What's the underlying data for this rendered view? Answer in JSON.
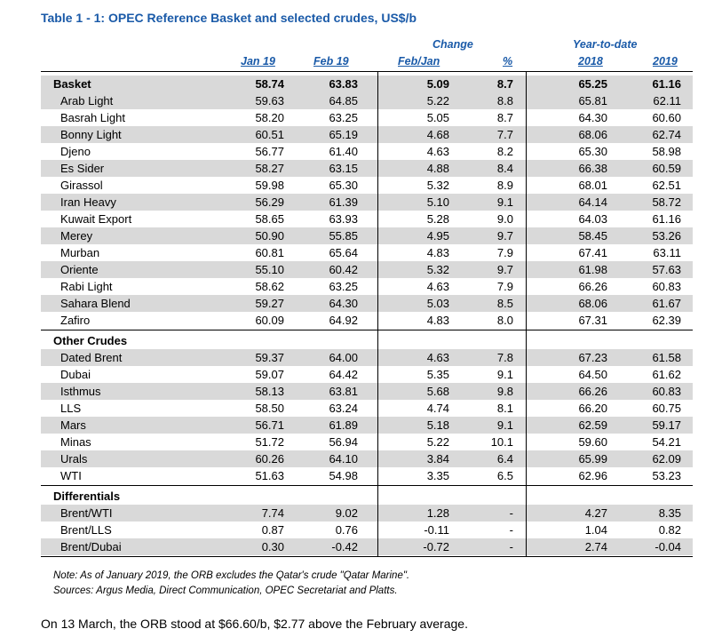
{
  "title": "Table 1 - 1: OPEC Reference Basket and selected crudes, US$/b",
  "headers": {
    "change": "Change",
    "ytd": "Year-to-date",
    "jan19": "Jan 19",
    "feb19": "Feb 19",
    "febjan": "Feb/Jan",
    "pct": "%",
    "y2018": "2018",
    "y2019": "2019"
  },
  "sections": [
    {
      "label": "Basket",
      "summary": [
        "58.74",
        "63.83",
        "5.09",
        "8.7",
        "65.25",
        "61.16"
      ],
      "rows": [
        [
          "Arab Light",
          "59.63",
          "64.85",
          "5.22",
          "8.8",
          "65.81",
          "62.11"
        ],
        [
          "Basrah Light",
          "58.20",
          "63.25",
          "5.05",
          "8.7",
          "64.30",
          "60.60"
        ],
        [
          "Bonny Light",
          "60.51",
          "65.19",
          "4.68",
          "7.7",
          "68.06",
          "62.74"
        ],
        [
          "Djeno",
          "56.77",
          "61.40",
          "4.63",
          "8.2",
          "65.30",
          "58.98"
        ],
        [
          "Es Sider",
          "58.27",
          "63.15",
          "4.88",
          "8.4",
          "66.38",
          "60.59"
        ],
        [
          "Girassol",
          "59.98",
          "65.30",
          "5.32",
          "8.9",
          "68.01",
          "62.51"
        ],
        [
          "Iran Heavy",
          "56.29",
          "61.39",
          "5.10",
          "9.1",
          "64.14",
          "58.72"
        ],
        [
          "Kuwait Export",
          "58.65",
          "63.93",
          "5.28",
          "9.0",
          "64.03",
          "61.16"
        ],
        [
          "Merey",
          "50.90",
          "55.85",
          "4.95",
          "9.7",
          "58.45",
          "53.26"
        ],
        [
          "Murban",
          "60.81",
          "65.64",
          "4.83",
          "7.9",
          "67.41",
          "63.11"
        ],
        [
          "Oriente",
          "55.10",
          "60.42",
          "5.32",
          "9.7",
          "61.98",
          "57.63"
        ],
        [
          "Rabi Light",
          "58.62",
          "63.25",
          "4.63",
          "7.9",
          "66.26",
          "60.83"
        ],
        [
          "Sahara Blend",
          "59.27",
          "64.30",
          "5.03",
          "8.5",
          "68.06",
          "61.67"
        ],
        [
          "Zafiro",
          "60.09",
          "64.92",
          "4.83",
          "8.0",
          "67.31",
          "62.39"
        ]
      ]
    },
    {
      "label": "Other Crudes",
      "rows": [
        [
          "Dated Brent",
          "59.37",
          "64.00",
          "4.63",
          "7.8",
          "67.23",
          "61.58"
        ],
        [
          "Dubai",
          "59.07",
          "64.42",
          "5.35",
          "9.1",
          "64.50",
          "61.62"
        ],
        [
          "Isthmus",
          "58.13",
          "63.81",
          "5.68",
          "9.8",
          "66.26",
          "60.83"
        ],
        [
          "LLS",
          "58.50",
          "63.24",
          "4.74",
          "8.1",
          "66.20",
          "60.75"
        ],
        [
          "Mars",
          "56.71",
          "61.89",
          "5.18",
          "9.1",
          "62.59",
          "59.17"
        ],
        [
          "Minas",
          "51.72",
          "56.94",
          "5.22",
          "10.1",
          "59.60",
          "54.21"
        ],
        [
          "Urals",
          "60.26",
          "64.10",
          "3.84",
          "6.4",
          "65.99",
          "62.09"
        ],
        [
          "WTI",
          "51.63",
          "54.98",
          "3.35",
          "6.5",
          "62.96",
          "53.23"
        ]
      ]
    },
    {
      "label": "Differentials",
      "rows": [
        [
          "Brent/WTI",
          "7.74",
          "9.02",
          "1.28",
          "-",
          "4.27",
          "8.35"
        ],
        [
          "Brent/LLS",
          "0.87",
          "0.76",
          "-0.11",
          "-",
          "1.04",
          "0.82"
        ],
        [
          "Brent/Dubai",
          "0.30",
          "-0.42",
          "-0.72",
          "-",
          "2.74",
          "-0.04"
        ]
      ]
    }
  ],
  "notes": [
    "Note: As of January 2019, the ORB excludes the Qatar's crude \"Qatar Marine\".",
    "Sources:  Argus Media, Direct Communication, OPEC Secretariat and Platts."
  ],
  "footer": "On 13 March, the ORB stood at $66.60/b, $2.77 above the February average."
}
